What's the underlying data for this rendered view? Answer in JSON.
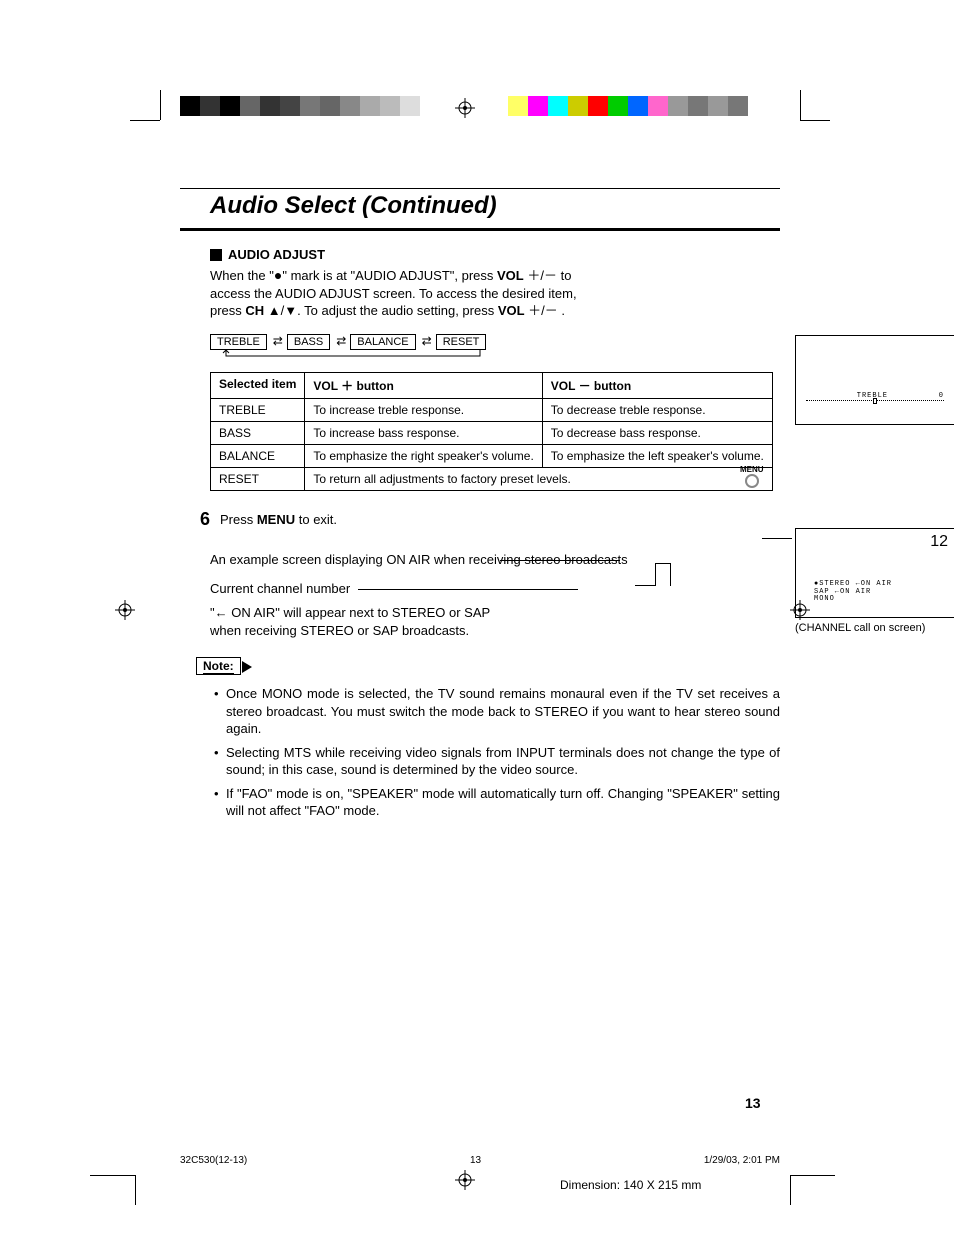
{
  "colorbars": {
    "left": [
      "#000000",
      "#333333",
      "#000000",
      "#666666",
      "#333333",
      "#444444",
      "#777777",
      "#666666",
      "#888888",
      "#aaaaaa",
      "#bbbbbb",
      "#dddddd",
      "#ffffff"
    ],
    "right": [
      "#ffff66",
      "#ff00ff",
      "#00ffff",
      "#cccc00",
      "#ff0000",
      "#00cc00",
      "#0066ff",
      "#ff66cc",
      "#999999",
      "#777777",
      "#999999",
      "#777777"
    ]
  },
  "title": "Audio Select (Continued)",
  "section": {
    "heading": "AUDIO ADJUST",
    "intro_pre": "When the \"",
    "intro_mid": "\" mark is at \"AUDIO ADJUST\", press ",
    "intro_vol": "VOL",
    "intro_plusminus": " ＋/－ ",
    "intro_post1": "to access the AUDIO ADJUST screen. To access the desired item, press ",
    "intro_ch": "CH",
    "intro_arrows": " ▲/▼",
    "intro_post2": ". To adjust the audio setting, press ",
    "intro_post3": "."
  },
  "menuflow": [
    "TREBLE",
    "BASS",
    "BALANCE",
    "RESET"
  ],
  "table": {
    "headers": [
      "Selected item",
      "VOL ＋ button",
      "VOL － button"
    ],
    "rows": [
      [
        "TREBLE",
        "To increase treble response.",
        "To decrease treble response."
      ],
      [
        "BASS",
        "To increase bass response.",
        "To decrease bass response."
      ],
      [
        "BALANCE",
        "To emphasize the right speaker's volume.",
        "To emphasize the left speaker's volume."
      ],
      [
        "RESET",
        "To return all adjustments to factory preset levels."
      ]
    ]
  },
  "treble_screen": {
    "label": "TREBLE",
    "value": "0"
  },
  "step6": {
    "num": "6",
    "text_pre": "Press ",
    "bold": "MENU",
    "text_post": " to exit.",
    "icon_label": "MENU"
  },
  "example": {
    "caption": "An example screen displaying ON AIR when receiving stereo broadcasts",
    "callout1": "Current channel number",
    "callout2": "\"← ON AIR\" will appear next to STEREO or SAP when receiving STEREO or SAP broadcasts.",
    "channel": "12",
    "osd_lines": [
      "●STEREO ←ON AIR",
      "  SAP   ←ON AIR",
      "  MONO"
    ],
    "screen_caption": "(CHANNEL call on screen)"
  },
  "note_label": "Note:",
  "notes": [
    "Once MONO mode is selected, the TV sound remains monaural even if the TV set receives a stereo broadcast. You must switch the mode back to STEREO if you want to hear stereo sound again.",
    "Selecting MTS while receiving video signals from INPUT terminals does not change the type of sound; in this case, sound is determined by the video source.",
    "If \"FAO\" mode is on, \"SPEAKER\" mode will automatically turn off. Changing \"SPEAKER\" setting will not affect \"FAO\" mode."
  ],
  "pagenum": "13",
  "footer": {
    "file": "32C530(12-13)",
    "page": "13",
    "date": "1/29/03, 2:01 PM"
  },
  "dimension": "Dimension: 140  X 215 mm"
}
